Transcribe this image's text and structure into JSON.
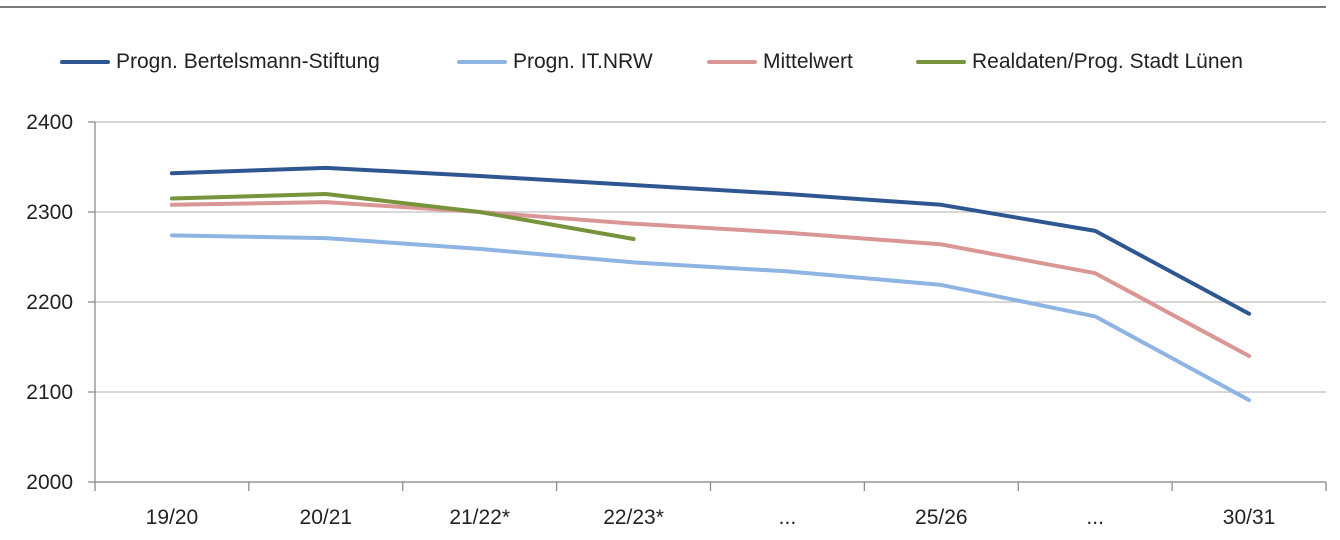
{
  "chart_data": {
    "type": "line",
    "title": "",
    "xlabel": "",
    "ylabel": "",
    "categories": [
      "19/20",
      "20/21",
      "21/22*",
      "22/23*",
      "...",
      "25/26",
      "...",
      "30/31"
    ],
    "ylim": [
      2000,
      2400
    ],
    "yticks": [
      2000,
      2100,
      2200,
      2300,
      2400
    ],
    "grid": true,
    "legend_position": "top",
    "series": [
      {
        "name": "Progn. Bertelsmann-Stiftung",
        "color": "#2E5791",
        "values": [
          2343,
          2349,
          2340,
          2330,
          2320,
          2308,
          2279,
          2187
        ]
      },
      {
        "name": "Progn. IT.NRW",
        "color": "#8EB4E3",
        "values": [
          2274,
          2271,
          2259,
          2244,
          2234,
          2219,
          2184,
          2091
        ]
      },
      {
        "name": "Mittelwert",
        "color": "#D99694",
        "values": [
          2308,
          2311,
          2300,
          2287,
          2277,
          2264,
          2232,
          2140
        ]
      },
      {
        "name": "Realdaten/Prog. Stadt Lünen",
        "color": "#77933C",
        "values": [
          2315,
          2320,
          2300,
          2270,
          null,
          null,
          null,
          null
        ]
      }
    ]
  }
}
